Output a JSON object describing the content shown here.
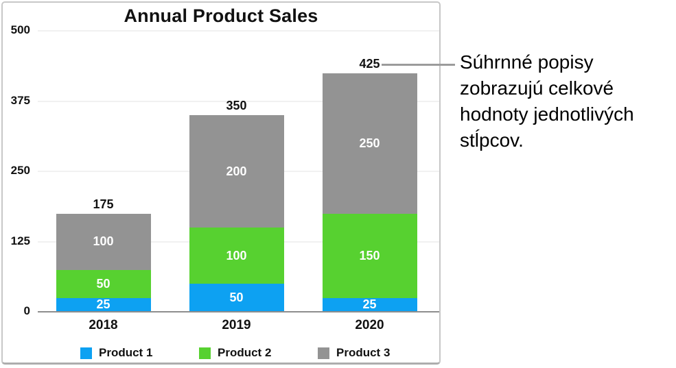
{
  "chart_data": {
    "type": "bar",
    "stacked": true,
    "title": "Annual Product Sales",
    "categories": [
      "2018",
      "2019",
      "2020"
    ],
    "series": [
      {
        "name": "Product 1",
        "color": "#0da1f2",
        "values": [
          25,
          50,
          25
        ]
      },
      {
        "name": "Product 2",
        "color": "#57d130",
        "values": [
          50,
          100,
          150
        ]
      },
      {
        "name": "Product 3",
        "color": "#939393",
        "values": [
          100,
          200,
          250
        ]
      }
    ],
    "totals": [
      175,
      350,
      425
    ],
    "xlabel": "",
    "ylabel": "",
    "ylim": [
      0,
      500
    ],
    "yticks": [
      0,
      125,
      250,
      375,
      500
    ],
    "grid": true,
    "legend_position": "bottom",
    "value_label_color": "#fefefe",
    "total_labels_shown": true
  },
  "callout": {
    "lines": [
      "Súhrnné popisy",
      "zobrazujú celkové",
      "hodnoty jednotlivých",
      "stĺpcov."
    ],
    "connector": "line-from-425-total-label"
  },
  "frame": {
    "border_color": "#c7c7c7",
    "background": "#ffffff"
  }
}
